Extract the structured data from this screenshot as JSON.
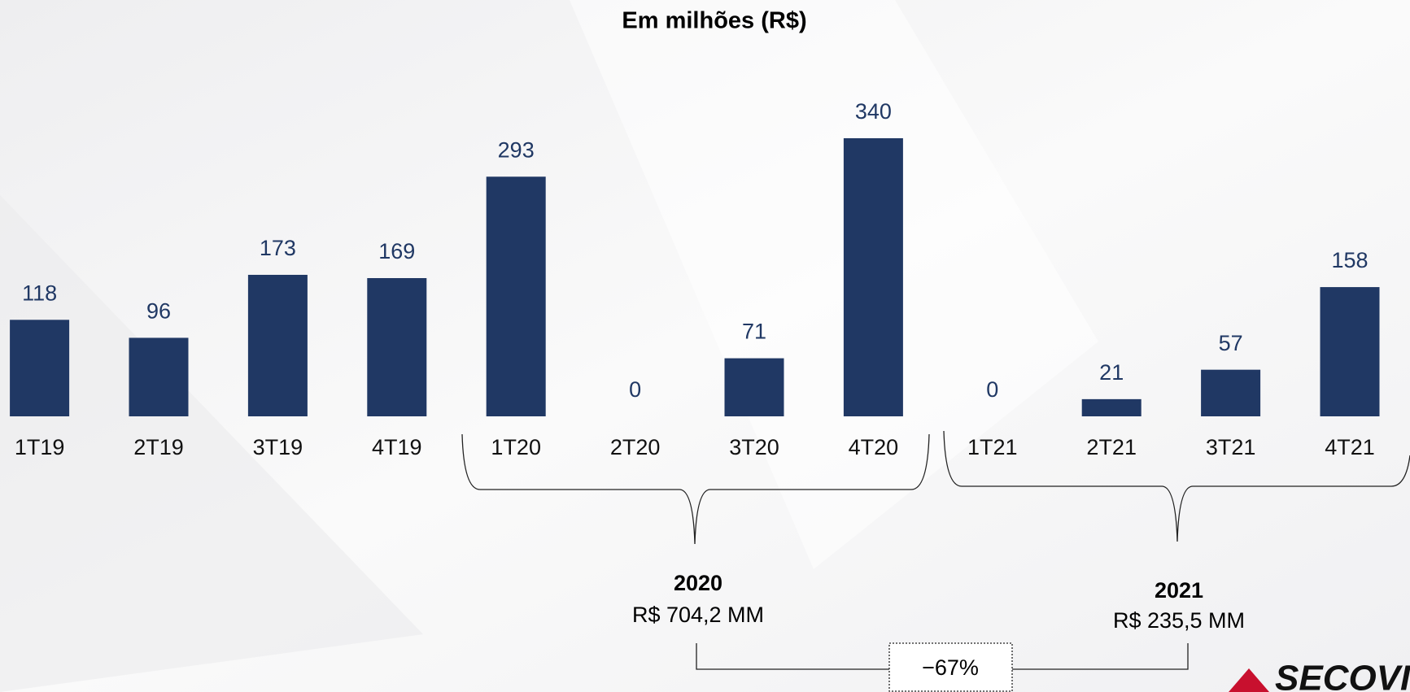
{
  "chart_data": {
    "type": "bar",
    "title": "Em milhões (R$)",
    "categories": [
      "1T19",
      "2T19",
      "3T19",
      "4T19",
      "1T20",
      "2T20",
      "3T20",
      "4T20",
      "1T21",
      "2T21",
      "3T21",
      "4T21"
    ],
    "values": [
      118,
      96,
      173,
      169,
      293,
      0,
      71,
      340,
      0,
      21,
      57,
      158
    ],
    "color": "#203864",
    "annotations": {
      "year_2020": "2020",
      "total_2020": "R$ 704,2 MM",
      "year_2021": "2021",
      "total_2021": "R$ 235,5 MM",
      "change": "−67%"
    },
    "logo": "SECOVI"
  }
}
